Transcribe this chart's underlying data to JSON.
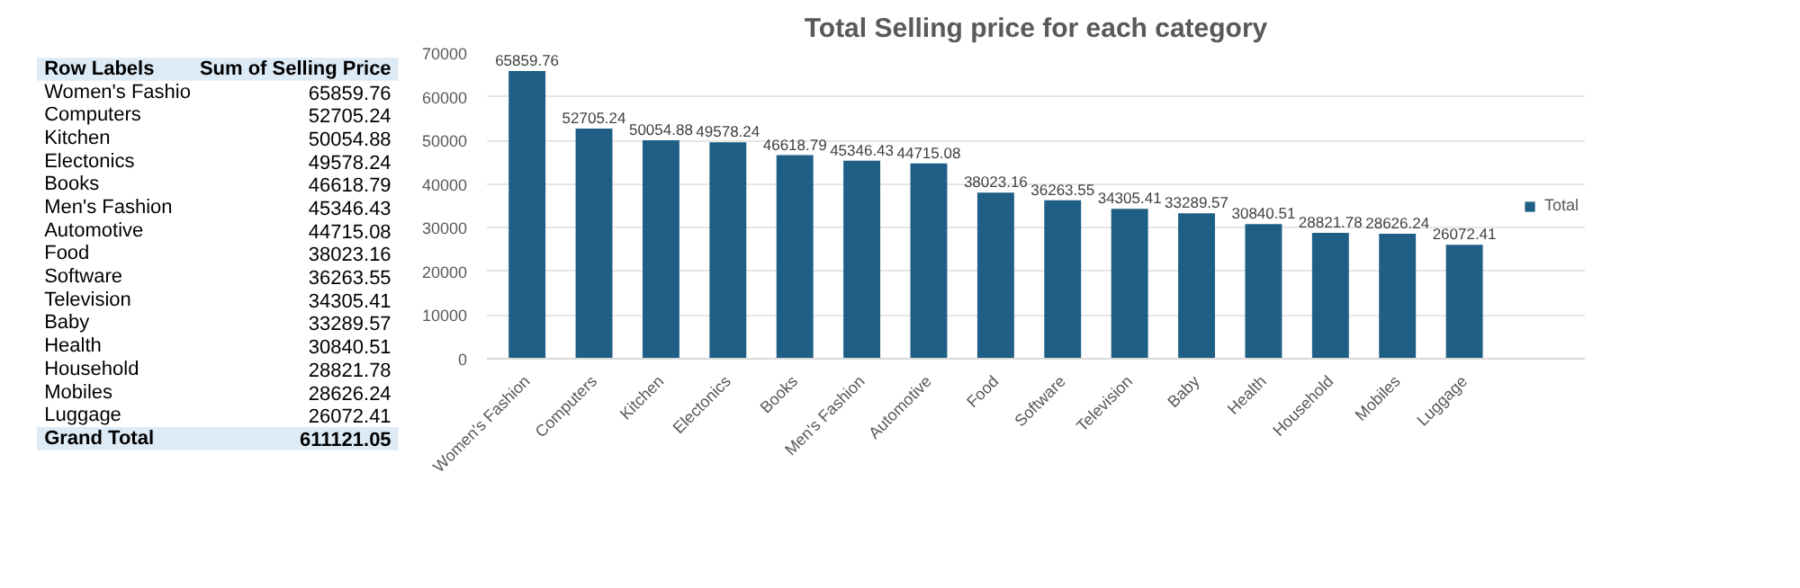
{
  "chart_data": [
    {
      "type": "other",
      "categories": [
        "Women's Fashio",
        "Computers",
        "Kitchen",
        "Electonics",
        "Books",
        "Men's Fashion",
        "Automotive",
        "Food",
        "Software",
        "Television",
        "Baby",
        "Health",
        "Household",
        "Mobiles",
        "Luggage"
      ],
      "values": [
        65859.76,
        52705.24,
        50054.88,
        49578.24,
        46618.79,
        45346.43,
        44715.08,
        38023.16,
        36263.55,
        34305.41,
        33289.57,
        30840.51,
        28821.78,
        28626.24,
        26072.41
      ],
      "data_labels": true,
      "annotations": [
        "Row Labels",
        "Sum of Selling Price",
        "Grand Total",
        "611121.05"
      ]
    },
    {
      "type": "bar",
      "title": "Total Selling price for each category",
      "categories": [
        "Women's Fashion",
        "Computers",
        "Kitchen",
        "Electonics",
        "Books",
        "Men's Fashion",
        "Automotive",
        "Food",
        "Software",
        "Television",
        "Baby",
        "Health",
        "Household",
        "Mobiles",
        "Luggage"
      ],
      "series": [
        {
          "name": "Total",
          "color": "#1f5f85",
          "values": [
            65859.76,
            52705.24,
            50054.88,
            49578.24,
            46618.79,
            45346.43,
            44715.08,
            38023.16,
            36263.55,
            34305.41,
            33289.57,
            30840.51,
            28821.78,
            28626.24,
            26072.41
          ]
        }
      ],
      "ylim": [
        0,
        70000
      ],
      "yticks": [
        0,
        10000,
        20000,
        30000,
        40000,
        50000,
        60000,
        70000
      ],
      "grid": "y",
      "legend": "right",
      "data_labels": true
    }
  ]
}
